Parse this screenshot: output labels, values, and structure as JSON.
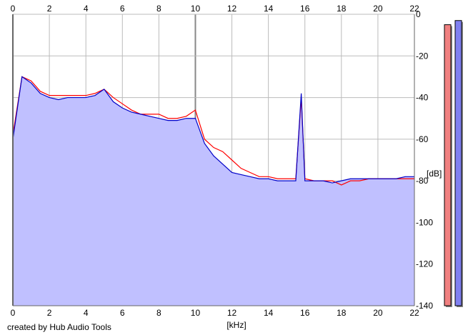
{
  "credit": "created by Hub Audio Tools",
  "colors": {
    "fill": "#c0c0ff",
    "channel_left": "#ff0000",
    "channel_right": "#0000c8",
    "meter_left": "#f08080",
    "meter_right": "#8080f0",
    "grid": "#bbbbbb",
    "major_grid": "#888888"
  },
  "chart_data": {
    "type": "line",
    "xlabel": "[kHz]",
    "ylabel": "[dB]",
    "xlim": [
      0,
      22
    ],
    "ylim": [
      -140,
      0
    ],
    "x_ticks": [
      "0",
      "2",
      "4",
      "6",
      "8",
      "10",
      "12",
      "14",
      "16",
      "18",
      "20",
      "22"
    ],
    "y_ticks": [
      "0",
      "-20",
      "-40",
      "-60",
      "-80",
      "-100",
      "-120",
      "-140"
    ],
    "grid": true,
    "x": [
      0,
      0.5,
      1,
      1.5,
      2,
      2.5,
      3,
      3.5,
      4,
      4.5,
      5,
      5.5,
      6,
      6.5,
      7,
      7.5,
      8,
      8.5,
      9,
      9.5,
      10,
      10.5,
      11,
      11.5,
      12,
      12.5,
      13,
      13.5,
      14,
      14.5,
      15,
      15.5,
      15.8,
      16,
      16.5,
      17,
      17.5,
      18,
      18.5,
      19,
      19.5,
      20,
      20.5,
      21,
      21.5,
      22
    ],
    "series": [
      {
        "values": [
          -58,
          -30,
          -32,
          -37,
          -39,
          -39,
          -39,
          -39,
          -39,
          -38,
          -36,
          -40,
          -43,
          -46,
          -48,
          -48,
          -48,
          -50,
          -50,
          -49,
          -46,
          -60,
          -64,
          -66,
          -70,
          -74,
          -76,
          -78,
          -78,
          -79,
          -79,
          -79,
          -40,
          -79,
          -80,
          -80,
          -80,
          -82,
          -80,
          -80,
          -79,
          -79,
          -79,
          -79,
          -79,
          -79
        ]
      },
      {
        "values": [
          -60,
          -30,
          -33,
          -38,
          -40,
          -41,
          -40,
          -40,
          -40,
          -39,
          -36,
          -42,
          -45,
          -47,
          -48,
          -49,
          -50,
          -51,
          -51,
          -50,
          -50,
          -62,
          -68,
          -72,
          -76,
          -77,
          -78,
          -79,
          -79,
          -80,
          -80,
          -80,
          -38,
          -80,
          -80,
          -80,
          -81,
          -80,
          -79,
          -79,
          -79,
          -79,
          -79,
          -79,
          -78,
          -78
        ]
      }
    ],
    "meters": [
      {
        "channel": "left",
        "level_db": -5
      },
      {
        "channel": "right",
        "level_db": -3
      }
    ]
  }
}
